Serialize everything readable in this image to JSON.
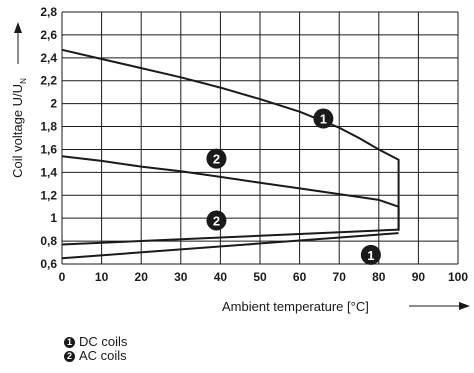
{
  "chart_data": {
    "type": "line",
    "xlabel": "Ambient temperature [°C]",
    "ylabel": "Coil voltage U/U",
    "ylabel_sub": "N",
    "xlim": [
      0,
      100
    ],
    "ylim": [
      0.6,
      2.8
    ],
    "x_ticks": [
      "0",
      "10",
      "20",
      "30",
      "40",
      "50",
      "60",
      "70",
      "80",
      "90",
      "100"
    ],
    "y_ticks": [
      "0,6",
      "0,8",
      "1",
      "1,2",
      "1,4",
      "1,6",
      "1,8",
      "2",
      "2,2",
      "2,4",
      "2,6",
      "2,8"
    ],
    "grid": true,
    "series": [
      {
        "marker": "1",
        "x": [
          0,
          10,
          20,
          30,
          40,
          50,
          60,
          70,
          75,
          80,
          85,
          85,
          85
        ],
        "y": [
          2.47,
          2.39,
          2.31,
          2.23,
          2.14,
          2.04,
          1.93,
          1.79,
          1.7,
          1.6,
          1.51,
          0.9,
          0.89
        ],
        "lower_x": [
          0,
          85
        ],
        "lower_y": [
          0.65,
          0.87
        ]
      },
      {
        "marker": "2",
        "x": [
          0,
          10,
          20,
          30,
          40,
          50,
          60,
          70,
          80,
          85,
          85
        ],
        "y": [
          1.54,
          1.5,
          1.45,
          1.41,
          1.36,
          1.31,
          1.26,
          1.21,
          1.16,
          1.1,
          0.9
        ],
        "lower_x": [
          0,
          85
        ],
        "lower_y": [
          0.77,
          0.9
        ]
      }
    ],
    "markers": [
      {
        "label": "1",
        "x": 66,
        "y": 1.87
      },
      {
        "label": "2",
        "x": 39,
        "y": 1.52
      },
      {
        "label": "2",
        "x": 39,
        "y": 0.98
      },
      {
        "label": "1",
        "x": 78,
        "y": 0.68
      }
    ]
  },
  "legend": [
    {
      "marker": "1",
      "label": "DC coils"
    },
    {
      "marker": "2",
      "label": "AC coils"
    }
  ]
}
